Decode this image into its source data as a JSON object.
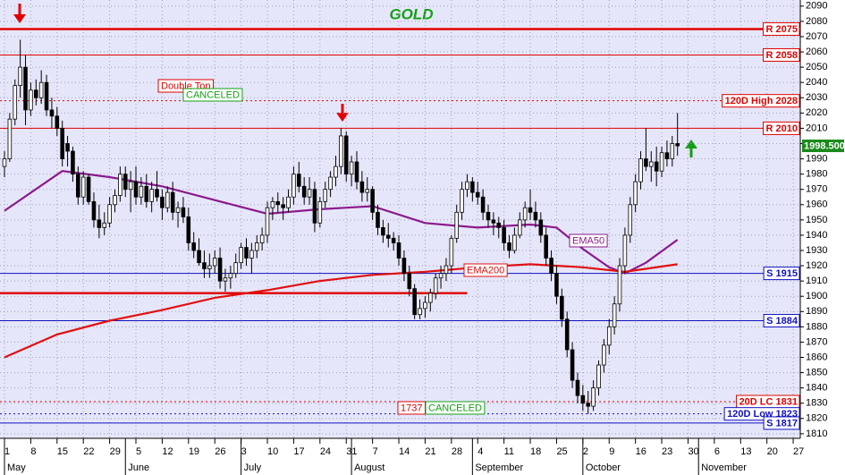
{
  "chart_data": {
    "type": "candlestick",
    "title": "GOLD",
    "title_color": "#12a012",
    "xlim": [
      -0.85,
      151.35
    ],
    "ylim": [
      1807,
      2094
    ],
    "yticks": [
      1810,
      1820,
      1830,
      1840,
      1850,
      1860,
      1870,
      1880,
      1890,
      1900,
      1910,
      1920,
      1930,
      1940,
      1950,
      1960,
      1970,
      1980,
      1990,
      2000,
      2010,
      2020,
      2030,
      2040,
      2050,
      2060,
      2070,
      2080,
      2090
    ],
    "xticks": [
      {
        "value": 0,
        "label": "1"
      },
      {
        "value": 5,
        "label": "8"
      },
      {
        "value": 10,
        "label": "15"
      },
      {
        "value": 15,
        "label": "22"
      },
      {
        "value": 20,
        "label": "29"
      },
      {
        "value": 25,
        "label": "5"
      },
      {
        "value": 30,
        "label": "12"
      },
      {
        "value": 35,
        "label": "19"
      },
      {
        "value": 40,
        "label": "26"
      },
      {
        "value": 45,
        "label": "3"
      },
      {
        "value": 50,
        "label": "10"
      },
      {
        "value": 55,
        "label": "17"
      },
      {
        "value": 60,
        "label": "24"
      },
      {
        "value": 65,
        "label": "31"
      },
      {
        "value": 70,
        "label": "7"
      },
      {
        "value": 75,
        "label": "14"
      },
      {
        "value": 80,
        "label": "21"
      },
      {
        "value": 85,
        "label": "28"
      },
      {
        "value": 90,
        "label": "4"
      },
      {
        "value": 95,
        "label": "11"
      },
      {
        "value": 100,
        "label": "18"
      },
      {
        "value": 105,
        "label": "25"
      },
      {
        "value": 110,
        "label": "2"
      },
      {
        "value": 115,
        "label": "9"
      },
      {
        "value": 120,
        "label": "16"
      },
      {
        "value": 125,
        "label": "23"
      },
      {
        "value": 130,
        "label": "30"
      },
      {
        "value": 135,
        "label": "6"
      },
      {
        "value": 140,
        "label": "13"
      },
      {
        "value": 145,
        "label": "20"
      },
      {
        "value": 150,
        "label": "27"
      }
    ],
    "months": [
      {
        "value": 0,
        "label": "May"
      },
      {
        "value": 23,
        "label": "June"
      },
      {
        "value": 45,
        "label": "July"
      },
      {
        "value": 66,
        "label": "August"
      },
      {
        "value": 89,
        "label": "September"
      },
      {
        "value": 110,
        "label": "October"
      },
      {
        "value": 132,
        "label": "November"
      }
    ],
    "grid": true,
    "ohlc": [
      [
        1985,
        1995,
        1978,
        1990
      ],
      [
        1990,
        2020,
        1988,
        2016
      ],
      [
        2016,
        2042,
        2012,
        2038
      ],
      [
        2038,
        2068,
        2030,
        2050
      ],
      [
        2050,
        2058,
        2012,
        2022
      ],
      [
        2022,
        2040,
        2018,
        2035
      ],
      [
        2035,
        2042,
        2025,
        2030
      ],
      [
        2030,
        2048,
        2026,
        2040
      ],
      [
        2040,
        2045,
        2018,
        2022
      ],
      [
        2022,
        2030,
        2010,
        2018
      ],
      [
        2018,
        2024,
        2005,
        2010
      ],
      [
        2010,
        2015,
        1985,
        1990
      ],
      [
        2000,
        2005,
        1985,
        1995
      ],
      [
        1995,
        1998,
        1975,
        1980
      ],
      [
        1980,
        1985,
        1960,
        1965
      ],
      [
        1965,
        1982,
        1960,
        1978
      ],
      [
        1978,
        1980,
        1960,
        1962
      ],
      [
        1962,
        1968,
        1945,
        1950
      ],
      [
        1950,
        1960,
        1938,
        1945
      ],
      [
        1945,
        1955,
        1940,
        1948
      ],
      [
        1948,
        1965,
        1945,
        1960
      ],
      [
        1960,
        1970,
        1955,
        1966
      ],
      [
        1966,
        1985,
        1962,
        1980
      ],
      [
        1980,
        1985,
        1965,
        1970
      ],
      [
        1970,
        1982,
        1955,
        1975
      ],
      [
        1975,
        1985,
        1960,
        1965
      ],
      [
        1965,
        1978,
        1960,
        1972
      ],
      [
        1972,
        1980,
        1958,
        1962
      ],
      [
        1962,
        1975,
        1955,
        1970
      ],
      [
        1970,
        1982,
        1962,
        1965
      ],
      [
        1965,
        1970,
        1950,
        1958
      ],
      [
        1958,
        1972,
        1955,
        1968
      ],
      [
        1968,
        1975,
        1950,
        1955
      ],
      [
        1955,
        1962,
        1945,
        1958
      ],
      [
        1958,
        1965,
        1948,
        1952
      ],
      [
        1952,
        1958,
        1930,
        1935
      ],
      [
        1935,
        1942,
        1925,
        1930
      ],
      [
        1930,
        1938,
        1920,
        1922
      ],
      [
        1922,
        1930,
        1912,
        1918
      ],
      [
        1918,
        1928,
        1912,
        1920
      ],
      [
        1920,
        1930,
        1915,
        1925
      ],
      [
        1925,
        1932,
        1905,
        1910
      ],
      [
        1910,
        1918,
        1903,
        1912
      ],
      [
        1912,
        1920,
        1905,
        1915
      ],
      [
        1915,
        1928,
        1912,
        1922
      ],
      [
        1922,
        1935,
        1918,
        1932
      ],
      [
        1932,
        1938,
        1920,
        1925
      ],
      [
        1925,
        1935,
        1915,
        1930
      ],
      [
        1930,
        1940,
        1925,
        1935
      ],
      [
        1935,
        1945,
        1930,
        1940
      ],
      [
        1940,
        1962,
        1935,
        1958
      ],
      [
        1958,
        1965,
        1950,
        1962
      ],
      [
        1962,
        1968,
        1955,
        1960
      ],
      [
        1960,
        1965,
        1950,
        1958
      ],
      [
        1958,
        1970,
        1955,
        1965
      ],
      [
        1965,
        1985,
        1960,
        1980
      ],
      [
        1980,
        1988,
        1968,
        1972
      ],
      [
        1972,
        1978,
        1960,
        1965
      ],
      [
        1965,
        1978,
        1960,
        1970
      ],
      [
        1970,
        1975,
        1942,
        1948
      ],
      [
        1948,
        1965,
        1945,
        1962
      ],
      [
        1962,
        1975,
        1958,
        1970
      ],
      [
        1970,
        1982,
        1965,
        1978
      ],
      [
        1978,
        1992,
        1972,
        1985
      ],
      [
        1985,
        2010,
        1980,
        2005
      ],
      [
        2005,
        2008,
        1975,
        1980
      ],
      [
        1980,
        1992,
        1972,
        1988
      ],
      [
        1988,
        1995,
        1970,
        1975
      ],
      [
        1975,
        1982,
        1962,
        1968
      ],
      [
        1968,
        1978,
        1962,
        1970
      ],
      [
        1970,
        1972,
        1950,
        1955
      ],
      [
        1955,
        1960,
        1940,
        1945
      ],
      [
        1945,
        1950,
        1935,
        1940
      ],
      [
        1940,
        1948,
        1932,
        1938
      ],
      [
        1938,
        1942,
        1930,
        1935
      ],
      [
        1935,
        1940,
        1920,
        1925
      ],
      [
        1925,
        1930,
        1910,
        1915
      ],
      [
        1915,
        1920,
        1900,
        1905
      ],
      [
        1905,
        1908,
        1885,
        1888
      ],
      [
        1888,
        1898,
        1885,
        1892
      ],
      [
        1892,
        1900,
        1886,
        1896
      ],
      [
        1896,
        1905,
        1890,
        1902
      ],
      [
        1902,
        1915,
        1898,
        1912
      ],
      [
        1912,
        1920,
        1905,
        1915
      ],
      [
        1915,
        1925,
        1910,
        1920
      ],
      [
        1920,
        1940,
        1915,
        1938
      ],
      [
        1938,
        1960,
        1935,
        1955
      ],
      [
        1955,
        1975,
        1950,
        1970
      ],
      [
        1970,
        1980,
        1965,
        1975
      ],
      [
        1975,
        1978,
        1962,
        1968
      ],
      [
        1968,
        1975,
        1960,
        1965
      ],
      [
        1965,
        1970,
        1950,
        1955
      ],
      [
        1955,
        1960,
        1945,
        1950
      ],
      [
        1950,
        1955,
        1940,
        1948
      ],
      [
        1948,
        1952,
        1938,
        1945
      ],
      [
        1945,
        1950,
        1930,
        1935
      ],
      [
        1935,
        1940,
        1925,
        1930
      ],
      [
        1930,
        1945,
        1928,
        1940
      ],
      [
        1940,
        1955,
        1938,
        1950
      ],
      [
        1950,
        1962,
        1945,
        1958
      ],
      [
        1958,
        1970,
        1950,
        1955
      ],
      [
        1955,
        1962,
        1945,
        1950
      ],
      [
        1950,
        1955,
        1935,
        1940
      ],
      [
        1940,
        1945,
        1920,
        1925
      ],
      [
        1925,
        1930,
        1910,
        1915
      ],
      [
        1915,
        1920,
        1895,
        1900
      ],
      [
        1900,
        1905,
        1880,
        1885
      ],
      [
        1885,
        1890,
        1860,
        1865
      ],
      [
        1865,
        1870,
        1840,
        1845
      ],
      [
        1845,
        1850,
        1830,
        1835
      ],
      [
        1835,
        1842,
        1825,
        1830
      ],
      [
        1830,
        1838,
        1823,
        1828
      ],
      [
        1828,
        1845,
        1825,
        1840
      ],
      [
        1840,
        1858,
        1835,
        1855
      ],
      [
        1855,
        1872,
        1850,
        1868
      ],
      [
        1868,
        1885,
        1862,
        1880
      ],
      [
        1880,
        1900,
        1875,
        1895
      ],
      [
        1895,
        1925,
        1890,
        1920
      ],
      [
        1920,
        1945,
        1915,
        1940
      ],
      [
        1940,
        1965,
        1935,
        1960
      ],
      [
        1960,
        1980,
        1955,
        1975
      ],
      [
        1975,
        1995,
        1970,
        1990
      ],
      [
        1990,
        2010,
        1982,
        1985
      ],
      [
        1985,
        1995,
        1975,
        1988
      ],
      [
        1988,
        1998,
        1972,
        1982
      ],
      [
        1982,
        1998,
        1978,
        1994
      ],
      [
        1994,
        2002,
        1985,
        1990
      ],
      [
        1990,
        2005,
        1985,
        2000
      ],
      [
        2000,
        2020,
        1992,
        1998.5
      ]
    ],
    "last_price_label": "1998.500",
    "series": [
      {
        "name": "EMA50",
        "color": "#8b1a8b",
        "x": [
          0,
          11,
          20,
          30,
          40,
          50,
          60,
          70,
          80,
          90,
          100,
          105,
          110,
          115,
          118,
          122,
          128
        ],
        "values": [
          1956,
          1982,
          1978,
          1972,
          1963,
          1954,
          1957,
          1959,
          1948,
          1945,
          1947,
          1945,
          1931,
          1919,
          1915,
          1922,
          1937
        ]
      },
      {
        "name": "EMA200",
        "color": "#e01010",
        "x": [
          0,
          10,
          20,
          30,
          40,
          50,
          60,
          70,
          80,
          90,
          100,
          110,
          118,
          128
        ],
        "values": [
          1860,
          1875,
          1884,
          1891,
          1899,
          1904,
          1910,
          1914,
          1916,
          1919,
          1921,
          1919,
          1916,
          1921
        ]
      }
    ],
    "levels": [
      {
        "label": "R 2075",
        "value": 2075,
        "color": "#e00000",
        "width": 2.5,
        "style": "solid"
      },
      {
        "label": "R 2058",
        "value": 2058,
        "color": "#e00000",
        "width": 1,
        "style": "solid"
      },
      {
        "label": "120D High 2028",
        "value": 2028,
        "color": "#e00000",
        "width": 1,
        "style": "dotted"
      },
      {
        "label": "R 2010",
        "value": 2010,
        "color": "#e00000",
        "width": 1,
        "style": "solid"
      },
      {
        "label": "S 1915",
        "value": 1915,
        "color": "#1010c0",
        "width": 1,
        "style": "solid"
      },
      {
        "label": "S 1884",
        "value": 1884,
        "color": "#1010c0",
        "width": 1,
        "style": "solid"
      },
      {
        "label": "20D LC 1831",
        "value": 1831,
        "color": "#e00000",
        "width": 1,
        "style": "dotted"
      },
      {
        "label": "120D Low 1823",
        "value": 1823,
        "color": "#1010c0",
        "width": 1,
        "style": "dotted"
      },
      {
        "label": "S 1817",
        "value": 1817,
        "color": "#1010c0",
        "width": 1,
        "style": "solid"
      },
      {
        "value": 1902,
        "color": "#e00000",
        "width": 2.5,
        "style": "solid",
        "x_end": 88
      }
    ],
    "annotations": [
      {
        "text": "Double Top",
        "color": "#e00000"
      },
      {
        "text": "CANCELED",
        "color": "#12a012"
      },
      {
        "text": "1737",
        "color": "#e00000"
      },
      {
        "text": "CANCELED",
        "color": "#12a012"
      }
    ]
  }
}
